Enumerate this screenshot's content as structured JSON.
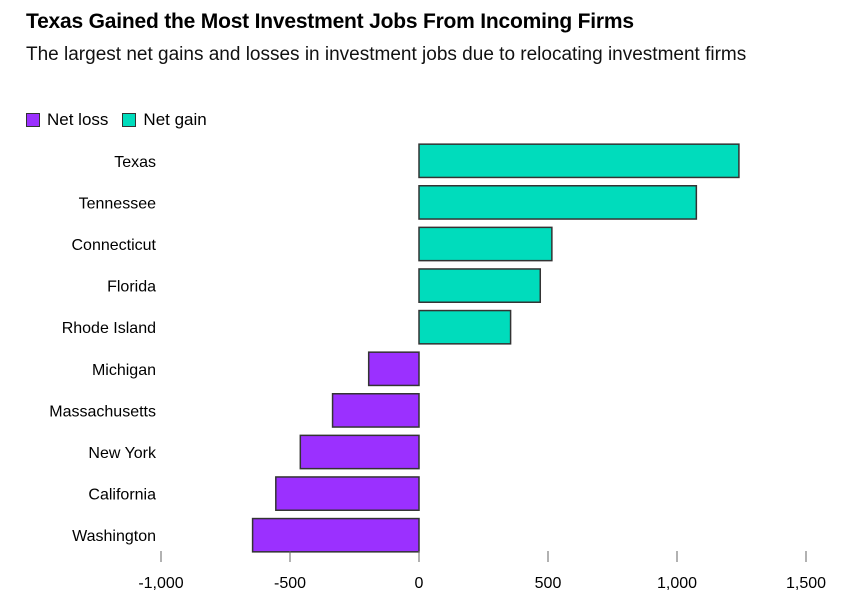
{
  "chart_data": {
    "type": "bar",
    "orientation": "horizontal",
    "title": "Texas Gained the Most Investment Jobs From Incoming Firms",
    "subtitle": "The largest net gains and losses in investment jobs due to relocating investment firms",
    "categories": [
      "Texas",
      "Tennessee",
      "Connecticut",
      "Florida",
      "Rhode Island",
      "Michigan",
      "Massachusetts",
      "New York",
      "California",
      "Washington"
    ],
    "values": [
      1240,
      1075,
      515,
      470,
      355,
      -195,
      -335,
      -460,
      -555,
      -645
    ],
    "legend": [
      {
        "label": "Net loss",
        "color": "#9b30ff"
      },
      {
        "label": "Net gain",
        "color": "#00dcbc"
      }
    ],
    "colors": {
      "loss": "#9b30ff",
      "gain": "#00dcbc"
    },
    "xlim": [
      -1000,
      1500
    ],
    "xticks": [
      -1000,
      -500,
      0,
      500,
      1000,
      1500
    ],
    "xtick_labels": [
      "-1,000",
      "-500",
      "0",
      "500",
      "1,000",
      "1,500"
    ],
    "legend_position": "top-left",
    "grid": false
  }
}
